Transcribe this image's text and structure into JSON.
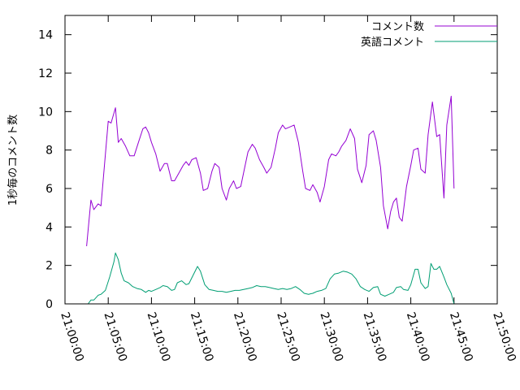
{
  "chart_data": {
    "type": "line",
    "title": "",
    "xlabel": "",
    "ylabel": "1秒毎のコメント数",
    "ylim": [
      0,
      15
    ],
    "y_ticks": [
      0,
      2,
      4,
      6,
      8,
      10,
      12,
      14
    ],
    "y_tick_labels": [
      "0",
      "2",
      "4",
      "6",
      "8",
      "10",
      "12",
      "14"
    ],
    "x_ticks": [
      "21:00:00",
      "21:05:00",
      "21:10:00",
      "21:15:00",
      "21:20:00",
      "21:25:00",
      "21:30:00",
      "21:35:00",
      "21:40:00",
      "21:45:00",
      "21:50:00"
    ],
    "xlim": [
      "21:00:00",
      "21:50:00"
    ],
    "grid": false,
    "legend_position": "top-right",
    "series": [
      {
        "name": "コメント数",
        "color": "#9400d3",
        "points": [
          [
            "21:02:30",
            3.0
          ],
          [
            "21:03:00",
            5.4
          ],
          [
            "21:03:20",
            4.9
          ],
          [
            "21:03:50",
            5.2
          ],
          [
            "21:04:10",
            5.1
          ],
          [
            "21:05:00",
            9.5
          ],
          [
            "21:05:20",
            9.4
          ],
          [
            "21:05:50",
            10.2
          ],
          [
            "21:06:10",
            8.4
          ],
          [
            "21:06:30",
            8.6
          ],
          [
            "21:07:00",
            8.2
          ],
          [
            "21:07:30",
            7.7
          ],
          [
            "21:08:00",
            7.7
          ],
          [
            "21:08:30",
            8.4
          ],
          [
            "21:09:00",
            9.1
          ],
          [
            "21:09:20",
            9.2
          ],
          [
            "21:09:40",
            8.9
          ],
          [
            "21:10:00",
            8.4
          ],
          [
            "21:10:30",
            7.8
          ],
          [
            "21:11:00",
            6.9
          ],
          [
            "21:11:30",
            7.3
          ],
          [
            "21:11:50",
            7.3
          ],
          [
            "21:12:20",
            6.4
          ],
          [
            "21:12:40",
            6.4
          ],
          [
            "21:13:10",
            6.8
          ],
          [
            "21:13:40",
            7.2
          ],
          [
            "21:14:00",
            7.4
          ],
          [
            "21:14:20",
            7.2
          ],
          [
            "21:14:40",
            7.5
          ],
          [
            "21:15:10",
            7.6
          ],
          [
            "21:15:40",
            6.8
          ],
          [
            "21:16:00",
            5.9
          ],
          [
            "21:16:30",
            6.0
          ],
          [
            "21:17:00",
            6.9
          ],
          [
            "21:17:20",
            7.3
          ],
          [
            "21:17:50",
            7.1
          ],
          [
            "21:18:10",
            6.0
          ],
          [
            "21:18:40",
            5.4
          ],
          [
            "21:19:00",
            6.0
          ],
          [
            "21:19:30",
            6.4
          ],
          [
            "21:19:50",
            6.0
          ],
          [
            "21:20:20",
            6.1
          ],
          [
            "21:20:50",
            7.2
          ],
          [
            "21:21:10",
            7.9
          ],
          [
            "21:21:40",
            8.3
          ],
          [
            "21:22:00",
            8.1
          ],
          [
            "21:22:30",
            7.5
          ],
          [
            "21:23:00",
            7.1
          ],
          [
            "21:23:20",
            6.8
          ],
          [
            "21:23:50",
            7.1
          ],
          [
            "21:24:20",
            8.1
          ],
          [
            "21:24:40",
            8.9
          ],
          [
            "21:25:10",
            9.3
          ],
          [
            "21:25:30",
            9.1
          ],
          [
            "21:26:00",
            9.2
          ],
          [
            "21:26:30",
            9.3
          ],
          [
            "21:27:00",
            8.4
          ],
          [
            "21:27:30",
            6.9
          ],
          [
            "21:27:50",
            6.0
          ],
          [
            "21:28:20",
            5.9
          ],
          [
            "21:28:40",
            6.2
          ],
          [
            "21:29:10",
            5.8
          ],
          [
            "21:29:30",
            5.3
          ],
          [
            "21:30:00",
            6.1
          ],
          [
            "21:30:30",
            7.5
          ],
          [
            "21:30:50",
            7.8
          ],
          [
            "21:31:20",
            7.7
          ],
          [
            "21:31:40",
            7.9
          ],
          [
            "21:32:00",
            8.2
          ],
          [
            "21:32:30",
            8.5
          ],
          [
            "21:33:00",
            9.1
          ],
          [
            "21:33:30",
            8.6
          ],
          [
            "21:33:50",
            7.0
          ],
          [
            "21:34:20",
            6.3
          ],
          [
            "21:34:50",
            7.2
          ],
          [
            "21:35:10",
            8.8
          ],
          [
            "21:35:40",
            9.0
          ],
          [
            "21:36:00",
            8.5
          ],
          [
            "21:36:30",
            7.1
          ],
          [
            "21:36:50",
            5.1
          ],
          [
            "21:37:20",
            3.9
          ],
          [
            "21:37:40",
            4.8
          ],
          [
            "21:38:00",
            5.3
          ],
          [
            "21:38:20",
            5.5
          ],
          [
            "21:38:40",
            4.5
          ],
          [
            "21:39:00",
            4.3
          ],
          [
            "21:39:30",
            6.1
          ],
          [
            "21:40:00",
            7.2
          ],
          [
            "21:40:20",
            8.0
          ],
          [
            "21:40:50",
            8.1
          ],
          [
            "21:41:10",
            7.0
          ],
          [
            "21:41:40",
            6.8
          ],
          [
            "21:42:00",
            8.8
          ],
          [
            "21:42:30",
            10.5
          ],
          [
            "21:43:00",
            8.7
          ],
          [
            "21:43:20",
            8.8
          ],
          [
            "21:43:50",
            5.5
          ],
          [
            "21:44:10",
            9.3
          ],
          [
            "21:44:40",
            10.8
          ],
          [
            "21:45:00",
            6.0
          ]
        ]
      },
      {
        "name": "英語コメント",
        "color": "#009e73",
        "points": [
          [
            "21:02:40",
            0.0
          ],
          [
            "21:03:00",
            0.2
          ],
          [
            "21:03:20",
            0.2
          ],
          [
            "21:03:50",
            0.45
          ],
          [
            "21:04:10",
            0.5
          ],
          [
            "21:04:40",
            0.7
          ],
          [
            "21:05:10",
            1.4
          ],
          [
            "21:05:40",
            2.2
          ],
          [
            "21:05:50",
            2.65
          ],
          [
            "21:06:10",
            2.3
          ],
          [
            "21:06:30",
            1.6
          ],
          [
            "21:06:50",
            1.2
          ],
          [
            "21:07:20",
            1.1
          ],
          [
            "21:07:50",
            0.9
          ],
          [
            "21:08:20",
            0.8
          ],
          [
            "21:08:50",
            0.75
          ],
          [
            "21:09:20",
            0.6
          ],
          [
            "21:09:40",
            0.7
          ],
          [
            "21:10:00",
            0.65
          ],
          [
            "21:10:30",
            0.75
          ],
          [
            "21:11:00",
            0.85
          ],
          [
            "21:11:20",
            0.95
          ],
          [
            "21:11:50",
            0.9
          ],
          [
            "21:12:20",
            0.7
          ],
          [
            "21:12:40",
            0.75
          ],
          [
            "21:13:00",
            1.1
          ],
          [
            "21:13:30",
            1.2
          ],
          [
            "21:14:00",
            1.0
          ],
          [
            "21:14:20",
            1.05
          ],
          [
            "21:14:50",
            1.5
          ],
          [
            "21:15:20",
            1.95
          ],
          [
            "21:15:40",
            1.7
          ],
          [
            "21:16:10",
            1.0
          ],
          [
            "21:16:40",
            0.75
          ],
          [
            "21:17:10",
            0.7
          ],
          [
            "21:17:40",
            0.65
          ],
          [
            "21:18:10",
            0.65
          ],
          [
            "21:18:40",
            0.6
          ],
          [
            "21:19:10",
            0.65
          ],
          [
            "21:19:40",
            0.7
          ],
          [
            "21:20:10",
            0.7
          ],
          [
            "21:20:40",
            0.75
          ],
          [
            "21:21:10",
            0.8
          ],
          [
            "21:21:40",
            0.85
          ],
          [
            "21:22:10",
            0.95
          ],
          [
            "21:22:40",
            0.9
          ],
          [
            "21:23:10",
            0.9
          ],
          [
            "21:23:40",
            0.85
          ],
          [
            "21:24:10",
            0.8
          ],
          [
            "21:24:40",
            0.75
          ],
          [
            "21:25:10",
            0.8
          ],
          [
            "21:25:40",
            0.75
          ],
          [
            "21:26:10",
            0.8
          ],
          [
            "21:26:40",
            0.9
          ],
          [
            "21:27:10",
            0.75
          ],
          [
            "21:27:40",
            0.55
          ],
          [
            "21:28:10",
            0.5
          ],
          [
            "21:28:40",
            0.55
          ],
          [
            "21:29:10",
            0.65
          ],
          [
            "21:29:40",
            0.7
          ],
          [
            "21:30:10",
            0.8
          ],
          [
            "21:30:40",
            1.3
          ],
          [
            "21:31:10",
            1.55
          ],
          [
            "21:31:40",
            1.6
          ],
          [
            "21:32:10",
            1.7
          ],
          [
            "21:32:40",
            1.65
          ],
          [
            "21:33:10",
            1.55
          ],
          [
            "21:33:40",
            1.3
          ],
          [
            "21:34:10",
            0.9
          ],
          [
            "21:34:40",
            0.75
          ],
          [
            "21:35:10",
            0.65
          ],
          [
            "21:35:40",
            0.85
          ],
          [
            "21:36:10",
            0.9
          ],
          [
            "21:36:30",
            0.5
          ],
          [
            "21:37:00",
            0.4
          ],
          [
            "21:37:30",
            0.5
          ],
          [
            "21:38:00",
            0.6
          ],
          [
            "21:38:20",
            0.85
          ],
          [
            "21:38:50",
            0.9
          ],
          [
            "21:39:10",
            0.75
          ],
          [
            "21:39:40",
            0.7
          ],
          [
            "21:40:00",
            1.0
          ],
          [
            "21:40:30",
            1.8
          ],
          [
            "21:40:50",
            1.8
          ],
          [
            "21:41:10",
            1.1
          ],
          [
            "21:41:40",
            0.8
          ],
          [
            "21:42:00",
            0.9
          ],
          [
            "21:42:20",
            2.1
          ],
          [
            "21:42:40",
            1.8
          ],
          [
            "21:43:00",
            1.8
          ],
          [
            "21:43:20",
            1.95
          ],
          [
            "21:43:50",
            1.4
          ],
          [
            "21:44:10",
            1.0
          ],
          [
            "21:44:40",
            0.55
          ],
          [
            "21:45:00",
            0.0
          ]
        ]
      }
    ]
  }
}
